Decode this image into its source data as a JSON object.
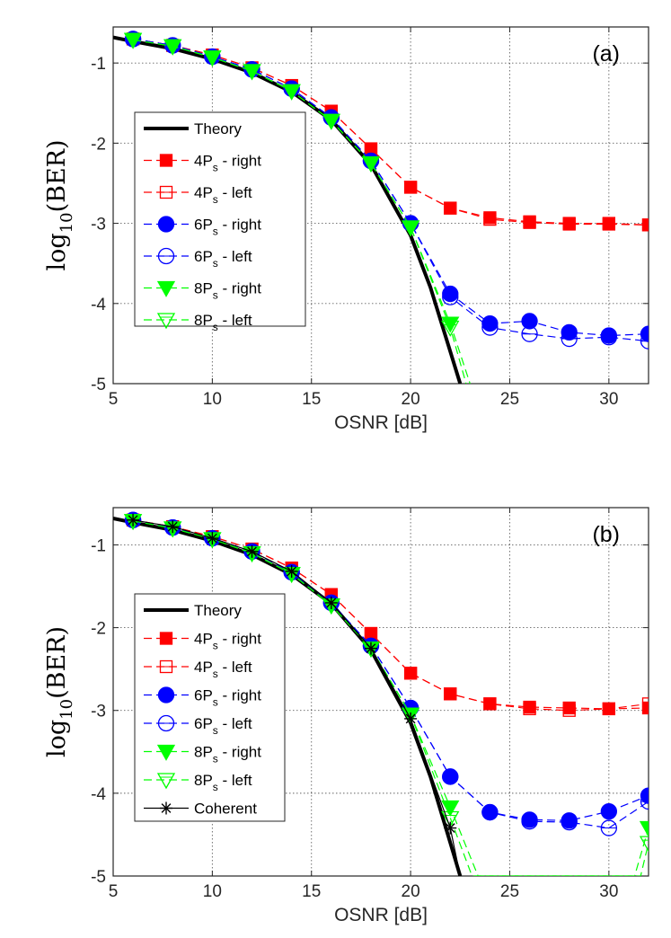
{
  "chart_data": [
    {
      "type": "line",
      "panel": "(a)",
      "xlabel": "OSNR [dB]",
      "ylabel": "log10(BER)",
      "ylabel_main": "log",
      "ylabel_sub": "10",
      "ylabel_rest": "(BER)",
      "xlim": [
        5,
        32
      ],
      "ylim": [
        -5,
        -0.55
      ],
      "xticks": [
        "5",
        "10",
        "15",
        "20",
        "25",
        "30"
      ],
      "yticks": [
        "-1",
        "-2",
        "-3",
        "-4",
        "-5"
      ],
      "grid": true,
      "legend_position": "upper-left",
      "series": [
        {
          "name": "Theory",
          "label_main": "Theory",
          "label_sub": "",
          "label_rest": "",
          "color": "#000000",
          "marker": "none",
          "style": "solid",
          "x": [
            5,
            6,
            8,
            10,
            12,
            14,
            16,
            18,
            20,
            21,
            22,
            22.5
          ],
          "y": [
            -0.68,
            -0.73,
            -0.82,
            -0.95,
            -1.12,
            -1.36,
            -1.71,
            -2.27,
            -3.15,
            -3.8,
            -4.6,
            -5.0
          ]
        },
        {
          "name": "4Ps - right",
          "label_main": "4P",
          "label_sub": "s",
          "label_rest": " - right",
          "color": "#ff0000",
          "marker": "square",
          "fill": true,
          "style": "dashed",
          "x": [
            6,
            8,
            10,
            12,
            14,
            16,
            18,
            20,
            22,
            24,
            26,
            28,
            30,
            32
          ],
          "y": [
            -0.7,
            -0.78,
            -0.9,
            -1.06,
            -1.28,
            -1.6,
            -2.07,
            -2.55,
            -2.81,
            -2.93,
            -2.98,
            -3.0,
            -3.0,
            -3.02
          ]
        },
        {
          "name": "4Ps - left",
          "label_main": "4P",
          "label_sub": "s",
          "label_rest": " - left",
          "color": "#ff0000",
          "marker": "square",
          "fill": false,
          "style": "dashed",
          "x": [
            6,
            8,
            10,
            12,
            14,
            16,
            18,
            20,
            22,
            24,
            26,
            28,
            30,
            32
          ],
          "y": [
            -0.7,
            -0.78,
            -0.9,
            -1.06,
            -1.28,
            -1.6,
            -2.07,
            -2.55,
            -2.81,
            -2.95,
            -2.99,
            -3.01,
            -3.01,
            -3.02
          ]
        },
        {
          "name": "6Ps - right",
          "label_main": "6P",
          "label_sub": "s",
          "label_rest": " - right",
          "color": "#0000ff",
          "marker": "circle",
          "fill": true,
          "style": "dashed",
          "x": [
            6,
            8,
            10,
            12,
            14,
            16,
            18,
            20,
            22,
            24,
            26,
            28,
            30,
            32
          ],
          "y": [
            -0.7,
            -0.78,
            -0.92,
            -1.08,
            -1.32,
            -1.68,
            -2.22,
            -3.0,
            -3.88,
            -4.25,
            -4.22,
            -4.36,
            -4.4,
            -4.38
          ]
        },
        {
          "name": "6Ps - left",
          "label_main": "6P",
          "label_sub": "s",
          "label_rest": " - left",
          "color": "#0000ff",
          "marker": "circle",
          "fill": false,
          "style": "dashed",
          "x": [
            6,
            8,
            10,
            12,
            14,
            16,
            18,
            20,
            22,
            24,
            26,
            28,
            30,
            32
          ],
          "y": [
            -0.7,
            -0.78,
            -0.92,
            -1.08,
            -1.32,
            -1.68,
            -2.22,
            -3.0,
            -3.92,
            -4.3,
            -4.38,
            -4.44,
            -4.42,
            -4.47
          ]
        },
        {
          "name": "8Ps - right",
          "label_main": "8P",
          "label_sub": "s",
          "label_rest": " - right",
          "color": "#00ff00",
          "marker": "triangle-down",
          "fill": true,
          "style": "dashed",
          "x": [
            6,
            8,
            10,
            12,
            14,
            16,
            18,
            20,
            22,
            23
          ],
          "y": [
            -0.71,
            -0.79,
            -0.93,
            -1.1,
            -1.35,
            -1.72,
            -2.25,
            -3.05,
            -4.25,
            -5.0
          ]
        },
        {
          "name": "8Ps - left",
          "label_main": "8P",
          "label_sub": "s",
          "label_rest": " - left",
          "color": "#00ff00",
          "marker": "triangle-down",
          "fill": false,
          "style": "dashed",
          "x": [
            6,
            8,
            10,
            12,
            14,
            16,
            18,
            20,
            22,
            22.8
          ],
          "y": [
            -0.71,
            -0.79,
            -0.93,
            -1.1,
            -1.35,
            -1.72,
            -2.25,
            -3.05,
            -4.3,
            -5.0
          ]
        }
      ]
    },
    {
      "type": "line",
      "panel": "(b)",
      "xlabel": "OSNR [dB]",
      "ylabel": "log10(BER)",
      "ylabel_main": "log",
      "ylabel_sub": "10",
      "ylabel_rest": "(BER)",
      "xlim": [
        5,
        32
      ],
      "ylim": [
        -5,
        -0.55
      ],
      "xticks": [
        "5",
        "10",
        "15",
        "20",
        "25",
        "30"
      ],
      "yticks": [
        "-1",
        "-2",
        "-3",
        "-4",
        "-5"
      ],
      "grid": true,
      "legend_position": "upper-left",
      "series": [
        {
          "name": "Theory",
          "label_main": "Theory",
          "label_sub": "",
          "label_rest": "",
          "color": "#000000",
          "marker": "none",
          "style": "solid",
          "x": [
            5,
            6,
            8,
            10,
            12,
            14,
            16,
            18,
            20,
            21,
            22,
            22.5
          ],
          "y": [
            -0.68,
            -0.73,
            -0.82,
            -0.95,
            -1.12,
            -1.36,
            -1.71,
            -2.27,
            -3.15,
            -3.8,
            -4.6,
            -5.0
          ]
        },
        {
          "name": "4Ps - right",
          "label_main": "4P",
          "label_sub": "s",
          "label_rest": " - right",
          "color": "#ff0000",
          "marker": "square",
          "fill": true,
          "style": "dashed",
          "x": [
            6,
            8,
            10,
            12,
            14,
            16,
            18,
            20,
            22,
            24,
            26,
            28,
            30,
            32
          ],
          "y": [
            -0.7,
            -0.78,
            -0.9,
            -1.05,
            -1.28,
            -1.6,
            -2.07,
            -2.55,
            -2.8,
            -2.92,
            -2.96,
            -2.97,
            -2.98,
            -2.97
          ]
        },
        {
          "name": "4Ps - left",
          "label_main": "4P",
          "label_sub": "s",
          "label_rest": " - left",
          "color": "#ff0000",
          "marker": "square",
          "fill": false,
          "style": "dashed",
          "x": [
            6,
            8,
            10,
            12,
            14,
            16,
            18,
            20,
            22,
            24,
            26,
            28,
            30,
            32
          ],
          "y": [
            -0.7,
            -0.78,
            -0.9,
            -1.05,
            -1.28,
            -1.6,
            -2.07,
            -2.55,
            -2.8,
            -2.92,
            -2.98,
            -3.0,
            -2.98,
            -2.92
          ]
        },
        {
          "name": "6Ps - right",
          "label_main": "6P",
          "label_sub": "s",
          "label_rest": " - right",
          "color": "#0000ff",
          "marker": "circle",
          "fill": true,
          "style": "dashed",
          "x": [
            6,
            8,
            10,
            12,
            14,
            16,
            18,
            20,
            22,
            24,
            26,
            28,
            30,
            32
          ],
          "y": [
            -0.7,
            -0.79,
            -0.92,
            -1.08,
            -1.33,
            -1.7,
            -2.22,
            -2.97,
            -3.8,
            -4.23,
            -4.32,
            -4.33,
            -4.22,
            -4.03
          ]
        },
        {
          "name": "6Ps - left",
          "label_main": "6P",
          "label_sub": "s",
          "label_rest": " - left",
          "color": "#0000ff",
          "marker": "circle",
          "fill": false,
          "style": "dashed",
          "x": [
            6,
            8,
            10,
            12,
            14,
            16,
            18,
            20,
            22,
            24,
            26,
            28,
            30,
            32
          ],
          "y": [
            -0.7,
            -0.79,
            -0.92,
            -1.08,
            -1.33,
            -1.7,
            -2.22,
            -2.97,
            -3.8,
            -4.23,
            -4.34,
            -4.35,
            -4.42,
            -4.1
          ]
        },
        {
          "name": "8Ps - right",
          "label_main": "8P",
          "label_sub": "s",
          "label_rest": " - right",
          "color": "#00ff00",
          "marker": "triangle-down",
          "fill": true,
          "style": "dashed",
          "x": [
            6,
            8,
            10,
            12,
            14,
            16,
            18,
            20,
            22,
            23.4,
            31.3,
            32
          ],
          "y": [
            -0.71,
            -0.8,
            -0.93,
            -1.1,
            -1.35,
            -1.73,
            -2.25,
            -3.05,
            -4.17,
            -5.0,
            -5.0,
            -4.42
          ]
        },
        {
          "name": "8Ps - left",
          "label_main": "8P",
          "label_sub": "s",
          "label_rest": " - left",
          "color": "#00ff00",
          "marker": "triangle-down",
          "fill": false,
          "style": "dashed",
          "x": [
            6,
            8,
            10,
            12,
            14,
            16,
            18,
            20,
            22,
            23.1,
            31.6,
            32
          ],
          "y": [
            -0.71,
            -0.8,
            -0.93,
            -1.1,
            -1.35,
            -1.73,
            -2.25,
            -3.05,
            -4.3,
            -5.0,
            -5.0,
            -4.6
          ]
        },
        {
          "name": "Coherent",
          "label_main": "Coherent",
          "label_sub": "",
          "label_rest": "",
          "color": "#000000",
          "marker": "asterisk",
          "fill": false,
          "style": "solid",
          "x": [
            6,
            8,
            10,
            12,
            14,
            16,
            18,
            20,
            22,
            22.5
          ],
          "y": [
            -0.7,
            -0.78,
            -0.92,
            -1.08,
            -1.32,
            -1.7,
            -2.25,
            -3.1,
            -4.42,
            -5.0
          ]
        }
      ]
    }
  ]
}
